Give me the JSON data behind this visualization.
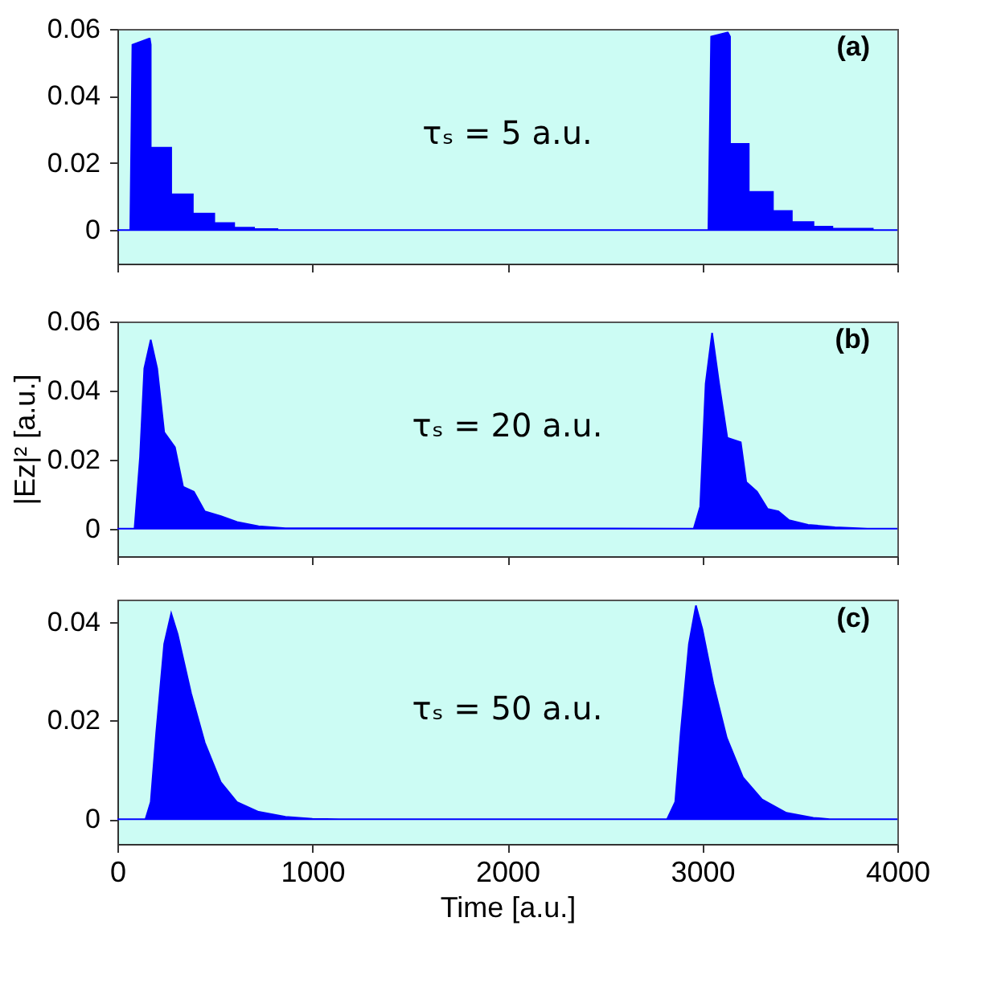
{
  "chart_data": [
    {
      "type": "area",
      "x": [
        0,
        66,
        77,
        163,
        166,
        171,
        171,
        276,
        276,
        387,
        387,
        497,
        497,
        599,
        599,
        701,
        701,
        821,
        821,
        3031,
        3045,
        3128,
        3131,
        3142,
        3142,
        3238,
        3238,
        3362,
        3362,
        3459,
        3459,
        3570,
        3570,
        3667,
        3667,
        3874,
        3874,
        4000
      ],
      "values": [
        0,
        0,
        0.0553,
        0.0571,
        0.0571,
        0.0553,
        0.0246,
        0.0246,
        0.0107,
        0.0107,
        0.0049,
        0.0049,
        0.0021,
        0.0021,
        0.0007,
        0.0007,
        0.0003,
        0.0003,
        0,
        0,
        0.0577,
        0.0589,
        0.0589,
        0.0577,
        0.0257,
        0.0257,
        0.0114,
        0.0114,
        0.0057,
        0.0057,
        0.0024,
        0.0024,
        0.001,
        0.001,
        0.0004,
        0.0004,
        0,
        0
      ],
      "color": "#0000ff",
      "xlim": [
        0,
        4000
      ],
      "ylim": [
        -0.01,
        0.06
      ],
      "xticks": [
        0,
        1000,
        2000,
        3000,
        4000
      ],
      "yticks": [
        0,
        0.02,
        0.04,
        0.06
      ],
      "tick_labels": "y",
      "annotations": [
        "τₛ = 5 a.u.",
        "(a)"
      ]
    },
    {
      "type": "area",
      "x": [
        0,
        88,
        116,
        138,
        171,
        204,
        240,
        295,
        337,
        392,
        448,
        531,
        614,
        724,
        862,
        2956,
        2989,
        3017,
        3050,
        3086,
        3128,
        3197,
        3225,
        3280,
        3335,
        3390,
        3445,
        3542,
        3680,
        3846,
        4000
      ],
      "values": [
        0,
        0,
        0.0207,
        0.0464,
        0.0547,
        0.0464,
        0.0279,
        0.0236,
        0.0121,
        0.0107,
        0.005,
        0.0036,
        0.0019,
        0.0007,
        0.0001,
        0,
        0.0064,
        0.042,
        0.0567,
        0.042,
        0.0263,
        0.025,
        0.0135,
        0.0107,
        0.0057,
        0.005,
        0.0024,
        0.0011,
        0.0004,
        0,
        0
      ],
      "color": "#0000ff",
      "xlim": [
        0,
        4000
      ],
      "ylim": [
        -0.008,
        0.06
      ],
      "xticks": [
        0,
        1000,
        2000,
        3000,
        4000
      ],
      "yticks": [
        0,
        0.02,
        0.04,
        0.06
      ],
      "tick_labels": "y",
      "ylabel": "|Ez|² [a.u.]",
      "annotations": [
        "τₛ = 20 a.u.",
        "(b)"
      ]
    },
    {
      "type": "area",
      "x": [
        0,
        144,
        171,
        199,
        240,
        276,
        309,
        378,
        448,
        530,
        613,
        724,
        862,
        1000,
        1138,
        2819,
        2861,
        2889,
        2931,
        2967,
        3000,
        3056,
        3125,
        3208,
        3306,
        3431,
        3569,
        3653,
        4000
      ],
      "values": [
        0,
        0,
        0.0035,
        0.0175,
        0.0355,
        0.0417,
        0.0375,
        0.0255,
        0.0155,
        0.0075,
        0.0035,
        0.0015,
        0.0005,
        0.0001,
        0,
        0,
        0.0035,
        0.0175,
        0.0355,
        0.0433,
        0.0385,
        0.0275,
        0.0165,
        0.0085,
        0.004,
        0.0013,
        0.0003,
        0,
        0
      ],
      "color": "#0000ff",
      "xlim": [
        0,
        4000
      ],
      "ylim": [
        -0.005,
        0.0445
      ],
      "xticks": [
        0,
        1000,
        2000,
        3000,
        4000
      ],
      "yticks": [
        0,
        0.02,
        0.04
      ],
      "xlabel": "Time [a.u.]",
      "annotations": [
        "τₛ = 50 a.u.",
        "(c)"
      ]
    }
  ]
}
